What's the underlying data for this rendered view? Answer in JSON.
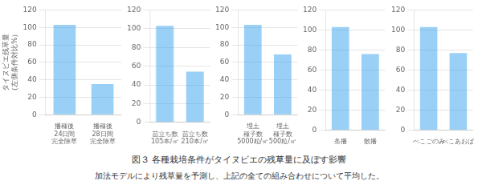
{
  "title": "図３  各種栽培条件がタイヌビエの残草量に及ぼす影響",
  "subtitle": "加法モデルにより残草量を予測し、上記の全ての組み合わせについて平均した。",
  "chart_data": [
    {
      "type": "bar",
      "categories": [
        "播種後\n24日間\n完全除草",
        "播種後\n28日間\n完全除草"
      ],
      "values": [
        103,
        35
      ],
      "ylabel": "タイヌビエ残草量\n（左側条件対比%）",
      "ylim": [
        0,
        120
      ],
      "yticks": [
        0,
        20,
        40,
        60,
        80,
        100,
        120
      ],
      "grid": true
    },
    {
      "type": "bar",
      "categories": [
        "苗立ち数\n105本/㎡",
        "苗立ち数\n210本/㎡"
      ],
      "values": [
        103,
        54
      ],
      "ylim": [
        0,
        120
      ],
      "yticks": [
        0,
        20,
        40,
        60,
        80,
        100,
        120
      ],
      "grid": true
    },
    {
      "type": "bar",
      "categories": [
        "埋土\n種子数\n5000粒/㎡",
        "埋土\n種子数\n500粒/㎡"
      ],
      "values": [
        103,
        69
      ],
      "ylim": [
        0,
        120
      ],
      "yticks": [
        0,
        20,
        40,
        60,
        80,
        100,
        120
      ],
      "grid": true
    },
    {
      "type": "bar",
      "categories": [
        "条播",
        "散播"
      ],
      "values": [
        103,
        76
      ],
      "ylim": [
        0,
        120
      ],
      "yticks": [
        0,
        20,
        40,
        60,
        80,
        100,
        120
      ],
      "grid": true
    },
    {
      "type": "bar",
      "categories": [
        "べこごのみ",
        "べこあおば"
      ],
      "values": [
        103,
        77
      ],
      "ylim": [
        0,
        120
      ],
      "yticks": [
        0,
        20,
        40,
        60,
        80,
        100,
        120
      ],
      "grid": true
    }
  ]
}
